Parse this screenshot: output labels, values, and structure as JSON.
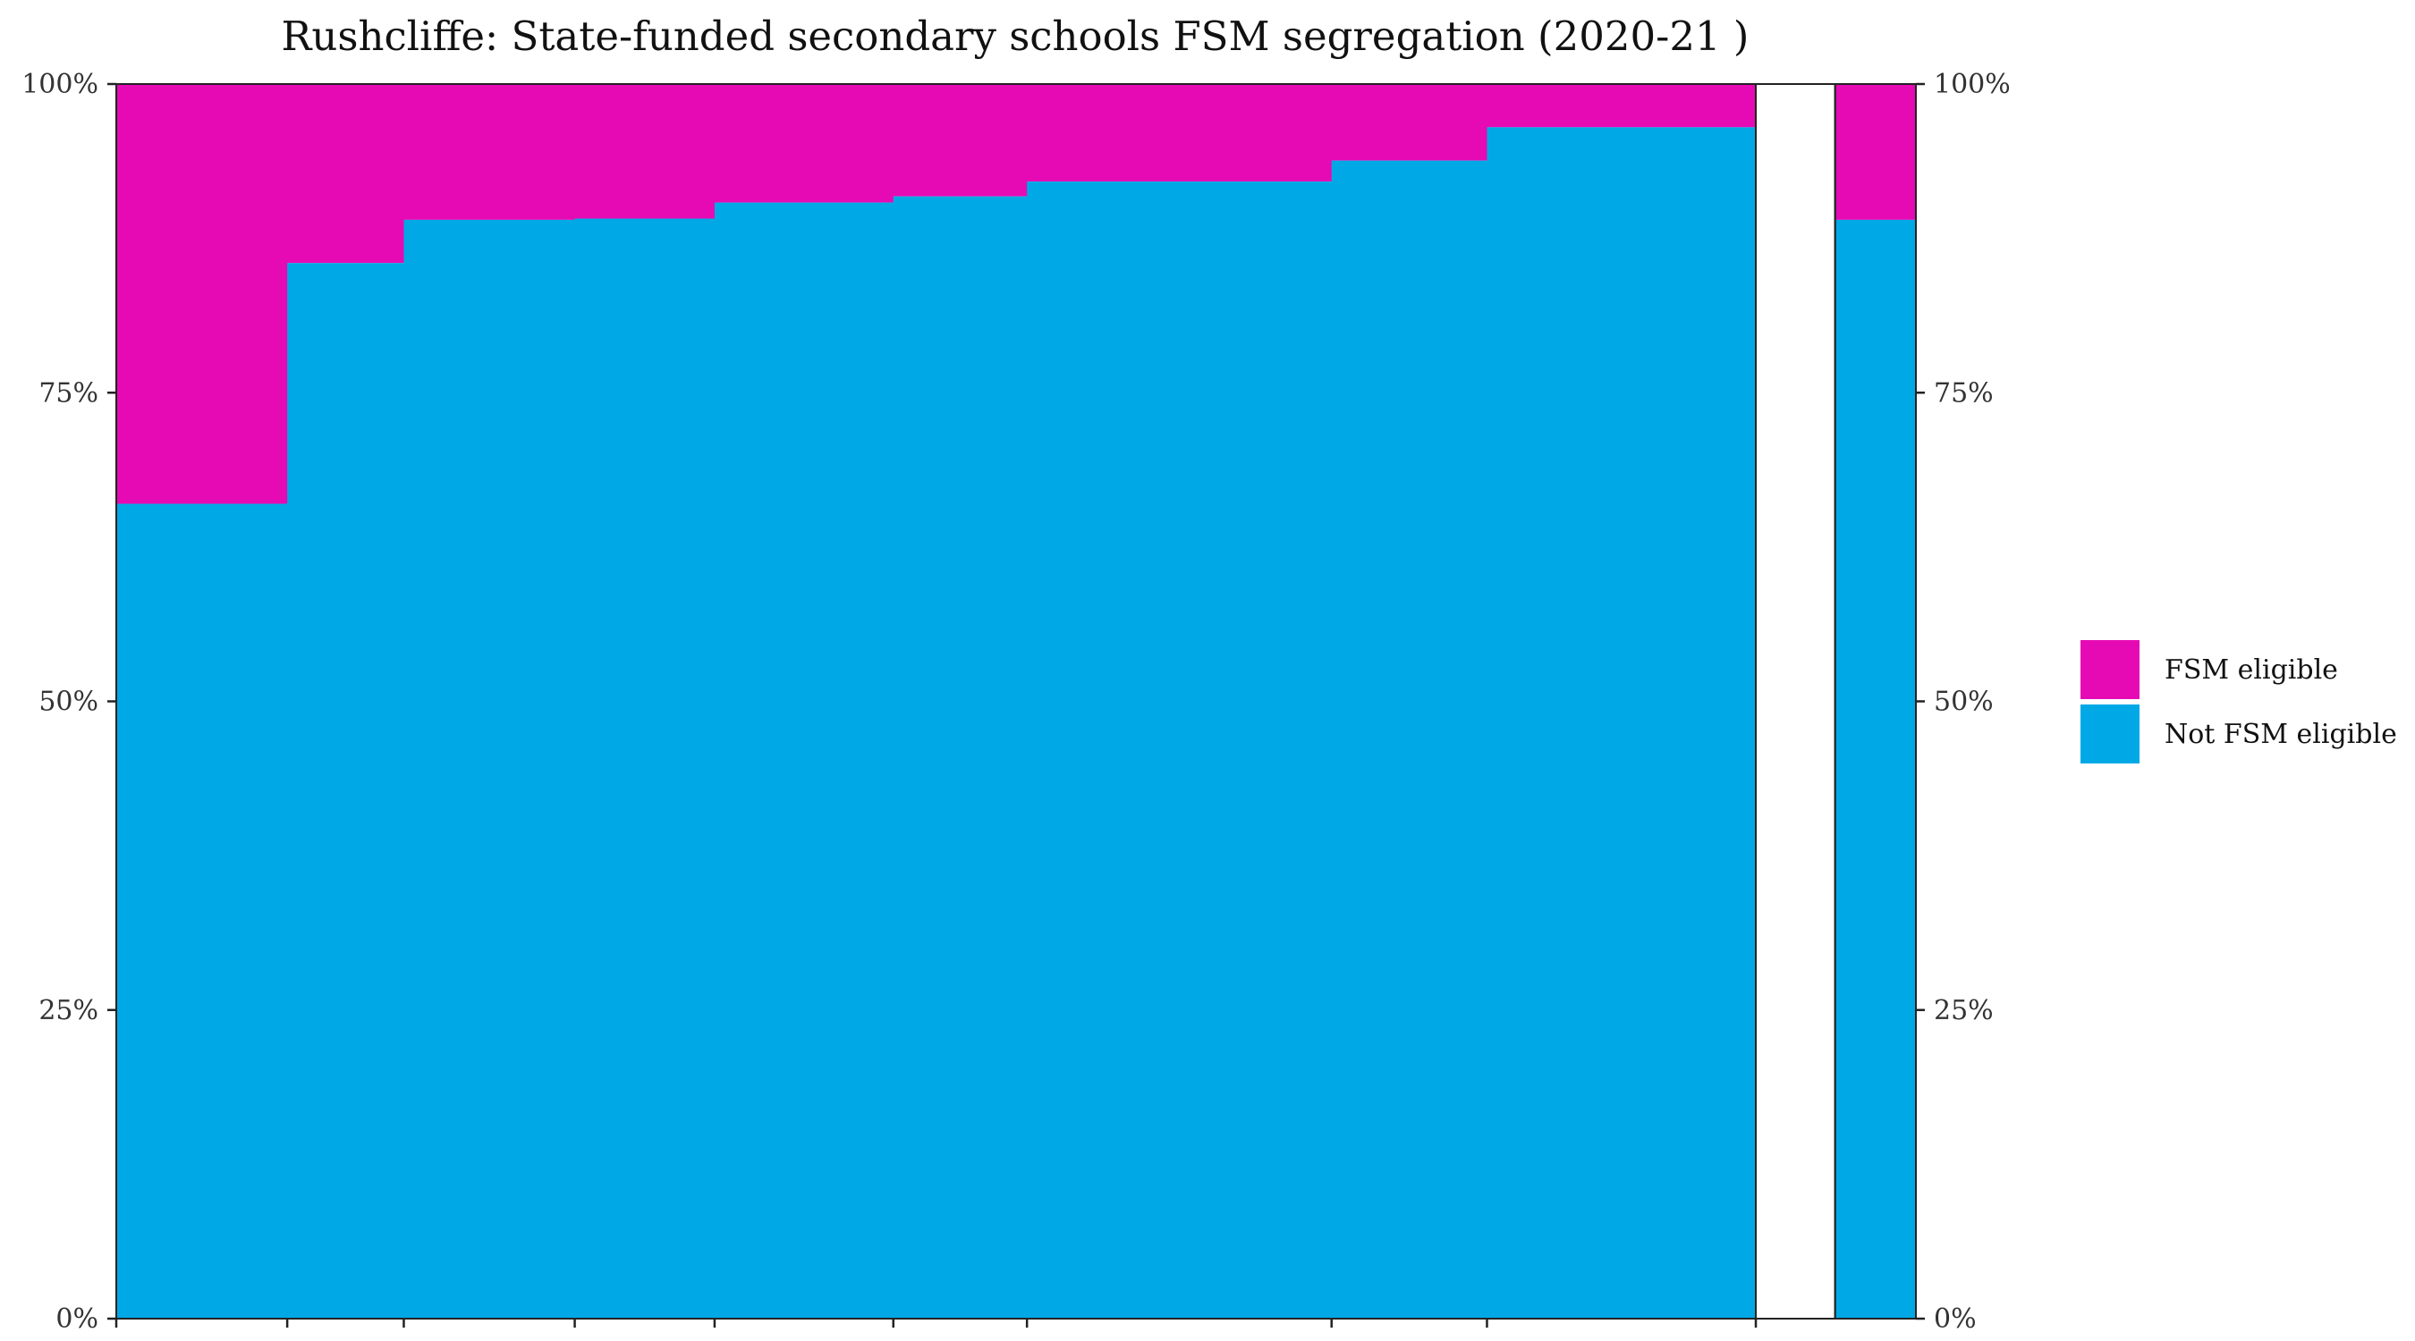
{
  "chart_data": {
    "type": "bar",
    "title": "Rushcliffe: State-funded secondary schools FSM segregation (2020-21 )",
    "xlabel": "",
    "ylabel": "",
    "ylim": [
      0,
      100
    ],
    "y_ticks": [
      "0%",
      "25%",
      "50%",
      "75%",
      "100%"
    ],
    "colors": {
      "fsm": "#E60AB4",
      "not_fsm": "#00A8E6"
    },
    "series": [
      {
        "name": "FSM eligible",
        "color": "#E60AB4"
      },
      {
        "name": "Not FSM eligible",
        "color": "#00A8E6"
      }
    ],
    "bars": [
      {
        "width": 110,
        "fsm_share": 34.0
      },
      {
        "width": 75,
        "fsm_share": 14.5
      },
      {
        "width": 110,
        "fsm_share": 11.0
      },
      {
        "width": 90,
        "fsm_share": 10.9
      },
      {
        "width": 115,
        "fsm_share": 9.6
      },
      {
        "width": 86,
        "fsm_share": 9.1
      },
      {
        "width": 196,
        "fsm_share": 7.9
      },
      {
        "width": 100,
        "fsm_share": 6.2
      },
      {
        "width": 173,
        "fsm_share": 3.5
      }
    ],
    "total_bar": {
      "width": 52,
      "fsm_share": 11.0
    },
    "gap_width": 51,
    "legend_position": "right",
    "grid": false
  }
}
